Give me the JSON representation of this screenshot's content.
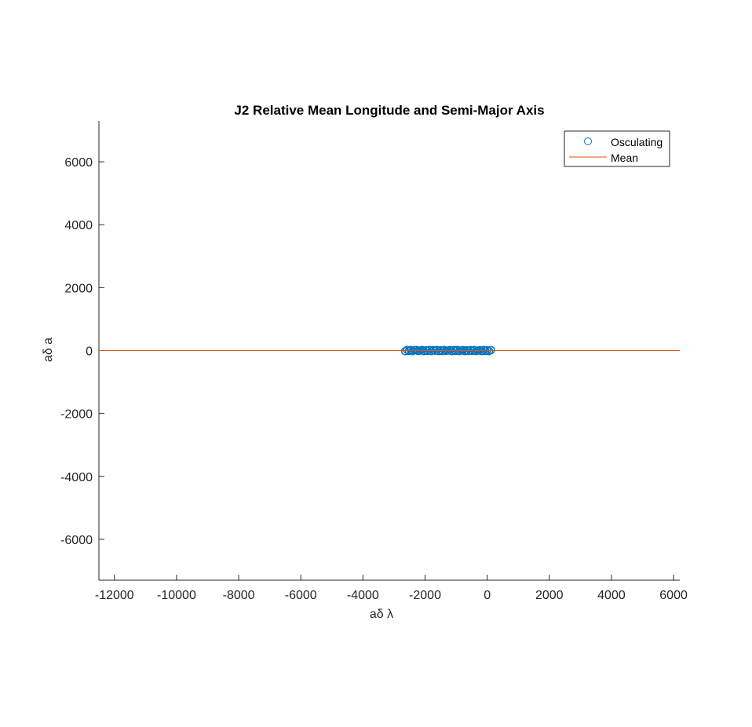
{
  "chart_data": {
    "type": "scatter",
    "title": "J2 Relative Mean Longitude and Semi-Major Axis",
    "xlabel": "aδ λ",
    "ylabel": "aδ a",
    "xlim": [
      -12500,
      6200
    ],
    "ylim": [
      -7300,
      7300
    ],
    "xticks": [
      -12000,
      -10000,
      -8000,
      -6000,
      -4000,
      -2000,
      0,
      2000,
      4000,
      6000
    ],
    "yticks": [
      -6000,
      -4000,
      -2000,
      0,
      2000,
      4000,
      6000
    ],
    "grid": false,
    "legend_position": "top-right",
    "colors": {
      "osculating": "#0072BD",
      "mean": "#D95319",
      "axis": "#262626"
    },
    "series": [
      {
        "name": "Osculating",
        "kind": "markers",
        "marker": "circle-open",
        "x": [
          -2640,
          -2580,
          -2520,
          -2460,
          -2400,
          -2340,
          -2280,
          -2220,
          -2160,
          -2100,
          -2040,
          -1980,
          -1920,
          -1860,
          -1800,
          -1740,
          -1680,
          -1620,
          -1560,
          -1500,
          -1440,
          -1380,
          -1320,
          -1260,
          -1200,
          -1140,
          -1080,
          -1020,
          -960,
          -900,
          -840,
          -780,
          -720,
          -660,
          -600,
          -540,
          -480,
          -420,
          -360,
          -300,
          -240,
          -180,
          -120,
          -60,
          0,
          60,
          120
        ],
        "y": [
          -20,
          20,
          -10,
          15,
          -20,
          10,
          20,
          -15,
          0,
          20,
          -20,
          10,
          -10,
          20,
          -20,
          15,
          -5,
          20,
          -20,
          10,
          -15,
          20,
          -10,
          0,
          20,
          -20,
          15,
          -10,
          20,
          -20,
          5,
          15,
          -20,
          10,
          -15,
          20,
          -10,
          20,
          -20,
          0,
          15,
          -20,
          20,
          -10,
          10,
          -20,
          15
        ]
      },
      {
        "name": "Mean",
        "kind": "line",
        "x": [
          -12500,
          6200
        ],
        "y": [
          0,
          0
        ]
      }
    ]
  }
}
